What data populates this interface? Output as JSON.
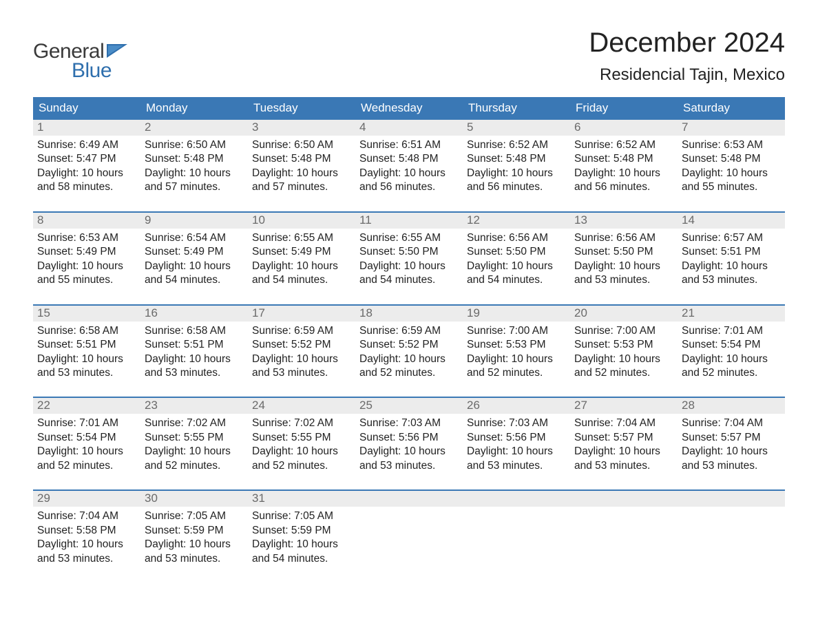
{
  "brand": {
    "part1": "General",
    "part2": "Blue"
  },
  "title": "December 2024",
  "subtitle": "Residencial Tajin, Mexico",
  "colors": {
    "header_bg": "#3a78b5",
    "row_top_border": "#3a78b5",
    "daynum_bg": "#ececec",
    "daynum_fg": "#6a6a6a",
    "text": "#222222",
    "brand_blue": "#2f6fad",
    "brand_dark": "#3a3a3a"
  },
  "weekdays": [
    "Sunday",
    "Monday",
    "Tuesday",
    "Wednesday",
    "Thursday",
    "Friday",
    "Saturday"
  ],
  "weeks": [
    [
      {
        "n": "1",
        "sunrise": "Sunrise: 6:49 AM",
        "sunset": "Sunset: 5:47 PM",
        "d1": "Daylight: 10 hours",
        "d2": "and 58 minutes."
      },
      {
        "n": "2",
        "sunrise": "Sunrise: 6:50 AM",
        "sunset": "Sunset: 5:48 PM",
        "d1": "Daylight: 10 hours",
        "d2": "and 57 minutes."
      },
      {
        "n": "3",
        "sunrise": "Sunrise: 6:50 AM",
        "sunset": "Sunset: 5:48 PM",
        "d1": "Daylight: 10 hours",
        "d2": "and 57 minutes."
      },
      {
        "n": "4",
        "sunrise": "Sunrise: 6:51 AM",
        "sunset": "Sunset: 5:48 PM",
        "d1": "Daylight: 10 hours",
        "d2": "and 56 minutes."
      },
      {
        "n": "5",
        "sunrise": "Sunrise: 6:52 AM",
        "sunset": "Sunset: 5:48 PM",
        "d1": "Daylight: 10 hours",
        "d2": "and 56 minutes."
      },
      {
        "n": "6",
        "sunrise": "Sunrise: 6:52 AM",
        "sunset": "Sunset: 5:48 PM",
        "d1": "Daylight: 10 hours",
        "d2": "and 56 minutes."
      },
      {
        "n": "7",
        "sunrise": "Sunrise: 6:53 AM",
        "sunset": "Sunset: 5:48 PM",
        "d1": "Daylight: 10 hours",
        "d2": "and 55 minutes."
      }
    ],
    [
      {
        "n": "8",
        "sunrise": "Sunrise: 6:53 AM",
        "sunset": "Sunset: 5:49 PM",
        "d1": "Daylight: 10 hours",
        "d2": "and 55 minutes."
      },
      {
        "n": "9",
        "sunrise": "Sunrise: 6:54 AM",
        "sunset": "Sunset: 5:49 PM",
        "d1": "Daylight: 10 hours",
        "d2": "and 54 minutes."
      },
      {
        "n": "10",
        "sunrise": "Sunrise: 6:55 AM",
        "sunset": "Sunset: 5:49 PM",
        "d1": "Daylight: 10 hours",
        "d2": "and 54 minutes."
      },
      {
        "n": "11",
        "sunrise": "Sunrise: 6:55 AM",
        "sunset": "Sunset: 5:50 PM",
        "d1": "Daylight: 10 hours",
        "d2": "and 54 minutes."
      },
      {
        "n": "12",
        "sunrise": "Sunrise: 6:56 AM",
        "sunset": "Sunset: 5:50 PM",
        "d1": "Daylight: 10 hours",
        "d2": "and 54 minutes."
      },
      {
        "n": "13",
        "sunrise": "Sunrise: 6:56 AM",
        "sunset": "Sunset: 5:50 PM",
        "d1": "Daylight: 10 hours",
        "d2": "and 53 minutes."
      },
      {
        "n": "14",
        "sunrise": "Sunrise: 6:57 AM",
        "sunset": "Sunset: 5:51 PM",
        "d1": "Daylight: 10 hours",
        "d2": "and 53 minutes."
      }
    ],
    [
      {
        "n": "15",
        "sunrise": "Sunrise: 6:58 AM",
        "sunset": "Sunset: 5:51 PM",
        "d1": "Daylight: 10 hours",
        "d2": "and 53 minutes."
      },
      {
        "n": "16",
        "sunrise": "Sunrise: 6:58 AM",
        "sunset": "Sunset: 5:51 PM",
        "d1": "Daylight: 10 hours",
        "d2": "and 53 minutes."
      },
      {
        "n": "17",
        "sunrise": "Sunrise: 6:59 AM",
        "sunset": "Sunset: 5:52 PM",
        "d1": "Daylight: 10 hours",
        "d2": "and 53 minutes."
      },
      {
        "n": "18",
        "sunrise": "Sunrise: 6:59 AM",
        "sunset": "Sunset: 5:52 PM",
        "d1": "Daylight: 10 hours",
        "d2": "and 52 minutes."
      },
      {
        "n": "19",
        "sunrise": "Sunrise: 7:00 AM",
        "sunset": "Sunset: 5:53 PM",
        "d1": "Daylight: 10 hours",
        "d2": "and 52 minutes."
      },
      {
        "n": "20",
        "sunrise": "Sunrise: 7:00 AM",
        "sunset": "Sunset: 5:53 PM",
        "d1": "Daylight: 10 hours",
        "d2": "and 52 minutes."
      },
      {
        "n": "21",
        "sunrise": "Sunrise: 7:01 AM",
        "sunset": "Sunset: 5:54 PM",
        "d1": "Daylight: 10 hours",
        "d2": "and 52 minutes."
      }
    ],
    [
      {
        "n": "22",
        "sunrise": "Sunrise: 7:01 AM",
        "sunset": "Sunset: 5:54 PM",
        "d1": "Daylight: 10 hours",
        "d2": "and 52 minutes."
      },
      {
        "n": "23",
        "sunrise": "Sunrise: 7:02 AM",
        "sunset": "Sunset: 5:55 PM",
        "d1": "Daylight: 10 hours",
        "d2": "and 52 minutes."
      },
      {
        "n": "24",
        "sunrise": "Sunrise: 7:02 AM",
        "sunset": "Sunset: 5:55 PM",
        "d1": "Daylight: 10 hours",
        "d2": "and 52 minutes."
      },
      {
        "n": "25",
        "sunrise": "Sunrise: 7:03 AM",
        "sunset": "Sunset: 5:56 PM",
        "d1": "Daylight: 10 hours",
        "d2": "and 53 minutes."
      },
      {
        "n": "26",
        "sunrise": "Sunrise: 7:03 AM",
        "sunset": "Sunset: 5:56 PM",
        "d1": "Daylight: 10 hours",
        "d2": "and 53 minutes."
      },
      {
        "n": "27",
        "sunrise": "Sunrise: 7:04 AM",
        "sunset": "Sunset: 5:57 PM",
        "d1": "Daylight: 10 hours",
        "d2": "and 53 minutes."
      },
      {
        "n": "28",
        "sunrise": "Sunrise: 7:04 AM",
        "sunset": "Sunset: 5:57 PM",
        "d1": "Daylight: 10 hours",
        "d2": "and 53 minutes."
      }
    ],
    [
      {
        "n": "29",
        "sunrise": "Sunrise: 7:04 AM",
        "sunset": "Sunset: 5:58 PM",
        "d1": "Daylight: 10 hours",
        "d2": "and 53 minutes."
      },
      {
        "n": "30",
        "sunrise": "Sunrise: 7:05 AM",
        "sunset": "Sunset: 5:59 PM",
        "d1": "Daylight: 10 hours",
        "d2": "and 53 minutes."
      },
      {
        "n": "31",
        "sunrise": "Sunrise: 7:05 AM",
        "sunset": "Sunset: 5:59 PM",
        "d1": "Daylight: 10 hours",
        "d2": "and 54 minutes."
      },
      {
        "empty": true
      },
      {
        "empty": true
      },
      {
        "empty": true
      },
      {
        "empty": true
      }
    ]
  ]
}
